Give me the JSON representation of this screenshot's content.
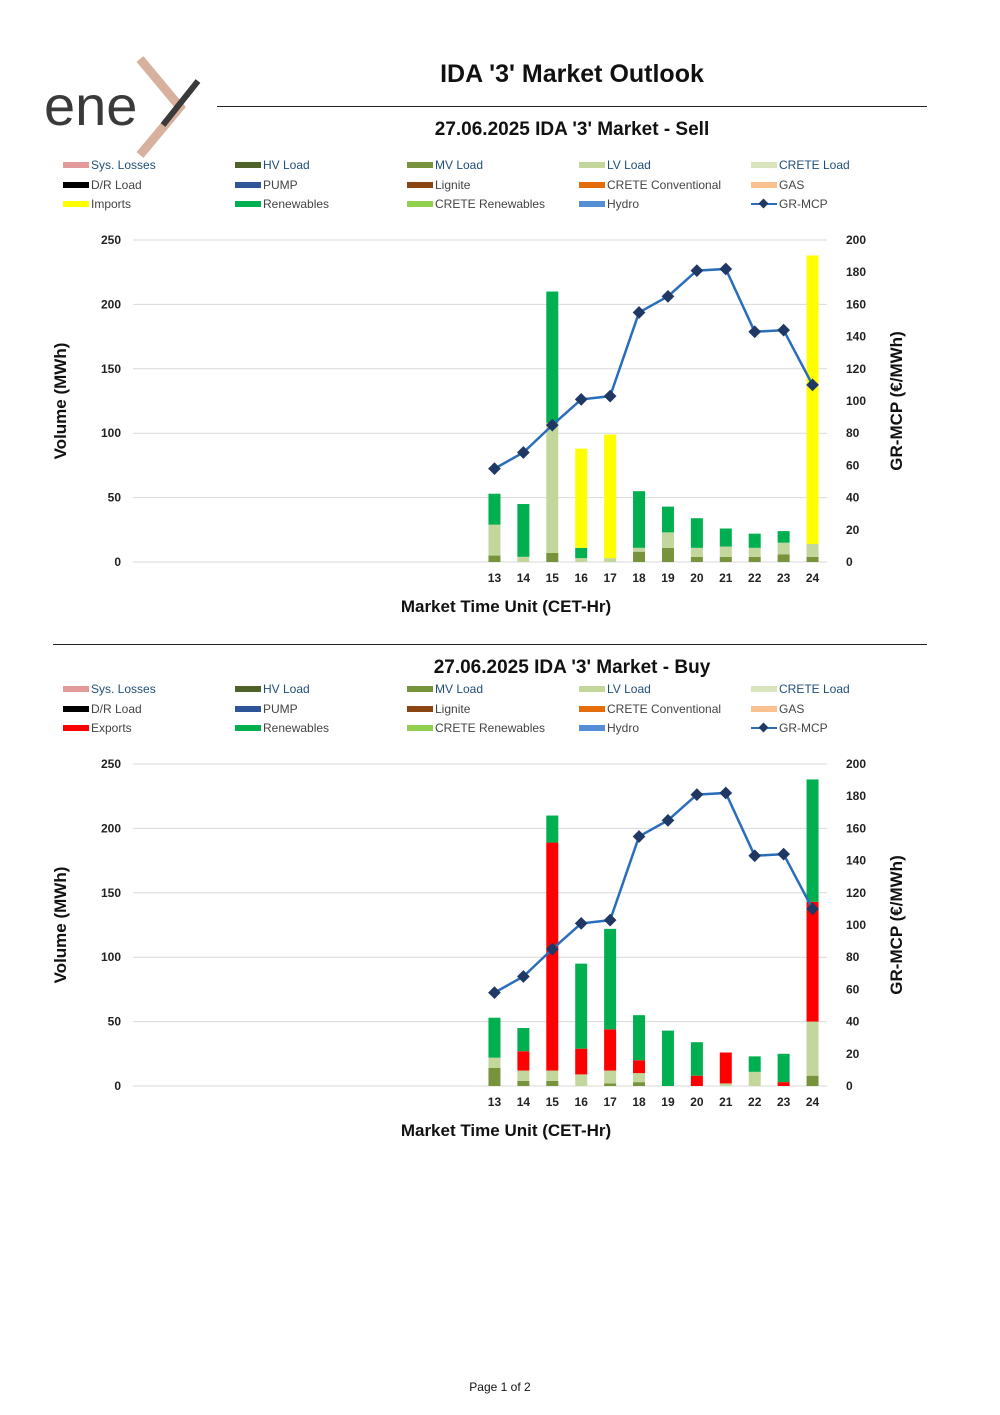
{
  "page_title": "IDA '3' Market Outlook",
  "logo": {
    "text": "ene",
    "colors": {
      "text": "#3a3a3a",
      "accent": "#d8b19e"
    }
  },
  "footer": "Page 1 of 2",
  "series_colors": {
    "Sys. Losses": "#e39a9a",
    "HV Load": "#4f6228",
    "MV Load": "#77933c",
    "LV Load": "#c3d69b",
    "CRETE Load": "#d7e4bd",
    "D/R Load": "#000000",
    "PUMP": "#2e5597",
    "Lignite": "#8b4513",
    "CRETE Conventional": "#e46c0a",
    "GAS": "#fac090",
    "Imports": "#ffff00",
    "Exports": "#ff0000",
    "Renewables": "#00b050",
    "CRETE Renewables": "#92d050",
    "Hydro": "#558ed5",
    "GR-MCP": "#2a6ebb"
  },
  "chart_data": [
    {
      "id": "sell",
      "type": "bar",
      "stacked": true,
      "title": "27.06.2025  IDA '3' Market - Sell",
      "xlabel": "Market Time Unit (CET-Hr)",
      "ylabel": "Volume (MWh)",
      "y2label": "GR-MCP (€/MWh)",
      "ylim": [
        0,
        250
      ],
      "yticks": [
        "0",
        "50",
        "100",
        "150",
        "200",
        "250"
      ],
      "y2lim": [
        0,
        200
      ],
      "y2ticks": [
        "0",
        "20",
        "40",
        "60",
        "80",
        "100",
        "120",
        "140",
        "160",
        "180",
        "200"
      ],
      "grid": true,
      "legend": [
        "Sys. Losses",
        "HV Load",
        "MV Load",
        "LV Load",
        "CRETE Load",
        "D/R Load",
        "PUMP",
        "Lignite",
        "CRETE Conventional",
        "GAS",
        "Imports",
        "Renewables",
        "CRETE Renewables",
        "Hydro",
        "GR-MCP"
      ],
      "categories": [
        "13",
        "14",
        "15",
        "16",
        "17",
        "18",
        "19",
        "20",
        "21",
        "22",
        "23",
        "24"
      ],
      "series": [
        {
          "name": "MV Load",
          "values": [
            5,
            0,
            7,
            0,
            0,
            8,
            11,
            4,
            4,
            4,
            6,
            4
          ]
        },
        {
          "name": "LV Load",
          "values": [
            24,
            4,
            101,
            3,
            3,
            3,
            12,
            7,
            8,
            7,
            9,
            10
          ]
        },
        {
          "name": "Renewables",
          "values": [
            24,
            41,
            102,
            8,
            0,
            44,
            20,
            23,
            14,
            11,
            9,
            0
          ]
        },
        {
          "name": "Imports",
          "values": [
            0,
            0,
            0,
            77,
            96,
            0,
            0,
            0,
            0,
            0,
            0,
            224
          ]
        }
      ],
      "line": {
        "name": "GR-MCP",
        "values": [
          58,
          68,
          85,
          101,
          103,
          155,
          165,
          181,
          182,
          143,
          144,
          110
        ]
      }
    },
    {
      "id": "buy",
      "type": "bar",
      "stacked": true,
      "title": "27.06.2025  IDA '3' Market - Buy",
      "xlabel": "Market Time Unit (CET-Hr)",
      "ylabel": "Volume (MWh)",
      "y2label": "GR-MCP (€/MWh)",
      "ylim": [
        0,
        250
      ],
      "yticks": [
        "0",
        "50",
        "100",
        "150",
        "200",
        "250"
      ],
      "y2lim": [
        0,
        200
      ],
      "y2ticks": [
        "0",
        "20",
        "40",
        "60",
        "80",
        "100",
        "120",
        "140",
        "160",
        "180",
        "200"
      ],
      "grid": true,
      "legend": [
        "Sys. Losses",
        "HV Load",
        "MV Load",
        "LV Load",
        "CRETE Load",
        "D/R Load",
        "PUMP",
        "Lignite",
        "CRETE Conventional",
        "GAS",
        "Exports",
        "Renewables",
        "CRETE Renewables",
        "Hydro",
        "GR-MCP"
      ],
      "categories": [
        "13",
        "14",
        "15",
        "16",
        "17",
        "18",
        "19",
        "20",
        "21",
        "22",
        "23",
        "24"
      ],
      "series": [
        {
          "name": "MV Load",
          "values": [
            14,
            4,
            4,
            0,
            2,
            3,
            0,
            0,
            0,
            0,
            0,
            8
          ]
        },
        {
          "name": "LV Load",
          "values": [
            8,
            8,
            8,
            9,
            10,
            7,
            0,
            0,
            2,
            11,
            0,
            42
          ]
        },
        {
          "name": "Exports",
          "values": [
            0,
            15,
            177,
            20,
            32,
            10,
            0,
            8,
            24,
            0,
            3,
            93
          ]
        },
        {
          "name": "Renewables",
          "values": [
            31,
            18,
            21,
            66,
            78,
            35,
            43,
            26,
            0,
            12,
            22,
            95
          ]
        }
      ],
      "line": {
        "name": "GR-MCP",
        "values": [
          58,
          68,
          85,
          101,
          103,
          155,
          165,
          181,
          182,
          143,
          144,
          110
        ]
      }
    }
  ]
}
